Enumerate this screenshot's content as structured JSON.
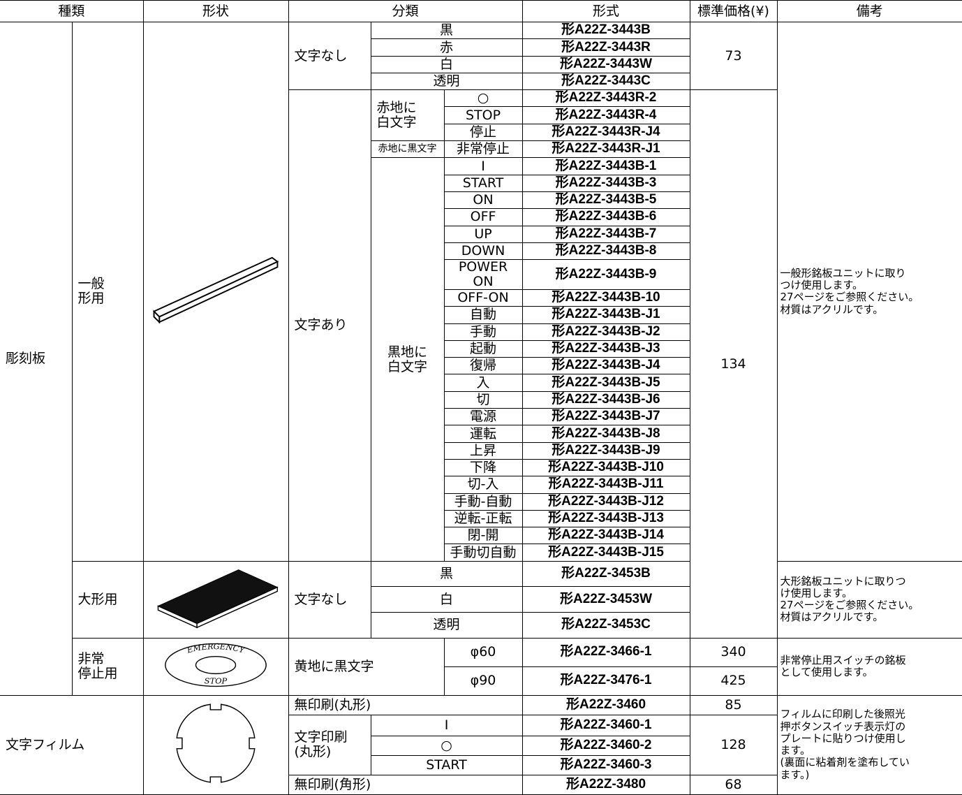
{
  "table": {
    "header": [
      "種類",
      "形状",
      "分類",
      "形式",
      "標準価格(¥)",
      "備考"
    ],
    "rows": [
      [
        "彫刻板",
        "一般\n形用",
        "文字なし",
        "黒",
        "形A22Z-3443B",
        73,
        "一般形銘板ユニットに取り\nつけ使用します。\n27ページをご参照ください。\n材質はアクリルです。"
      ],
      [
        "赤",
        "形A22Z-3443R"
      ],
      [
        "白",
        "形A22Z-3443W"
      ],
      [
        "透明",
        "形A22Z-3443C"
      ],
      [
        "文字あり",
        "赤地に\n白文字",
        "○",
        "形A22Z-3443R-2",
        134
      ],
      [
        "STOP",
        "形A22Z-3443R-4"
      ],
      [
        "停止",
        "形A22Z-3443R-J4"
      ],
      [
        "赤地に黒文字",
        "非常停止",
        "形A22Z-3443R-J1"
      ],
      [
        "黒地に\n白文字",
        "I",
        "形A22Z-3443B-1"
      ],
      [
        "START",
        "形A22Z-3443B-3"
      ],
      [
        "ON",
        "形A22Z-3443B-5"
      ],
      [
        "OFF",
        "形A22Z-3443B-6"
      ],
      [
        "UP",
        "形A22Z-3443B-7"
      ],
      [
        "DOWN",
        "形A22Z-3443B-8"
      ],
      [
        "POWER ON",
        "形A22Z-3443B-9"
      ],
      [
        "OFF-ON",
        "形A22Z-3443B-10"
      ],
      [
        "自動",
        "形A22Z-3443B-J1"
      ],
      [
        "手動",
        "形A22Z-3443B-J2"
      ],
      [
        "起動",
        "形A22Z-3443B-J3"
      ],
      [
        "復帰",
        "形A22Z-3443B-J4"
      ],
      [
        "入",
        "形A22Z-3443B-J5"
      ],
      [
        "切",
        "形A22Z-3443B-J6"
      ],
      [
        "電源",
        "形A22Z-3443B-J7"
      ],
      [
        "運転",
        "形A22Z-3443B-J8"
      ],
      [
        "上昇",
        "形A22Z-3443B-J9"
      ],
      [
        "下降",
        "形A22Z-3443B-J10"
      ],
      [
        "切-入",
        "形A22Z-3443B-J11"
      ],
      [
        "手動-自動",
        "形A22Z-3443B-J12"
      ],
      [
        "逆転-正転",
        "形A22Z-3443B-J13"
      ],
      [
        "閉-開",
        "形A22Z-3443B-J14"
      ],
      [
        "手動切自動",
        "形A22Z-3443B-J15"
      ],
      [
        "大形用",
        "文字なし",
        "黒",
        "形A22Z-3453B",
        "大形銘板ユニットに取りつ\nけ使用します。\n27ページをご参照ください。\n材質はアクリルです。"
      ],
      [
        "白",
        "形A22Z-3453W"
      ],
      [
        "透明",
        "形A22Z-3453C"
      ],
      [
        "非常\n停止用",
        "黄地に黒文字",
        "φ60",
        "形A22Z-3466-1",
        340,
        "非常停止用スイッチの銘板\nとして使用します。"
      ],
      [
        "φ90",
        "形A22Z-3476-1",
        425
      ],
      [
        "文字フィルム",
        "無印刷(丸形)",
        "形A22Z-3460",
        85,
        "フィルムに印刷した後照光\n押ボタンスイッチ表示灯の\nプレートに貼りつけ使用し\nます。\n(裏面に粘着剤を塗布してい\nます。)"
      ],
      [
        "文字印刷\n(丸形)",
        "I",
        "形A22Z-3460-1",
        128
      ],
      [
        "○",
        "形A22Z-3460-2"
      ],
      [
        "START",
        "形A22Z-3460-3"
      ],
      [
        "無印刷(角形)",
        "形A22Z-3480",
        68
      ]
    ],
    "emergency_plate_text": [
      "EMERGENCY",
      "STOP"
    ]
  }
}
